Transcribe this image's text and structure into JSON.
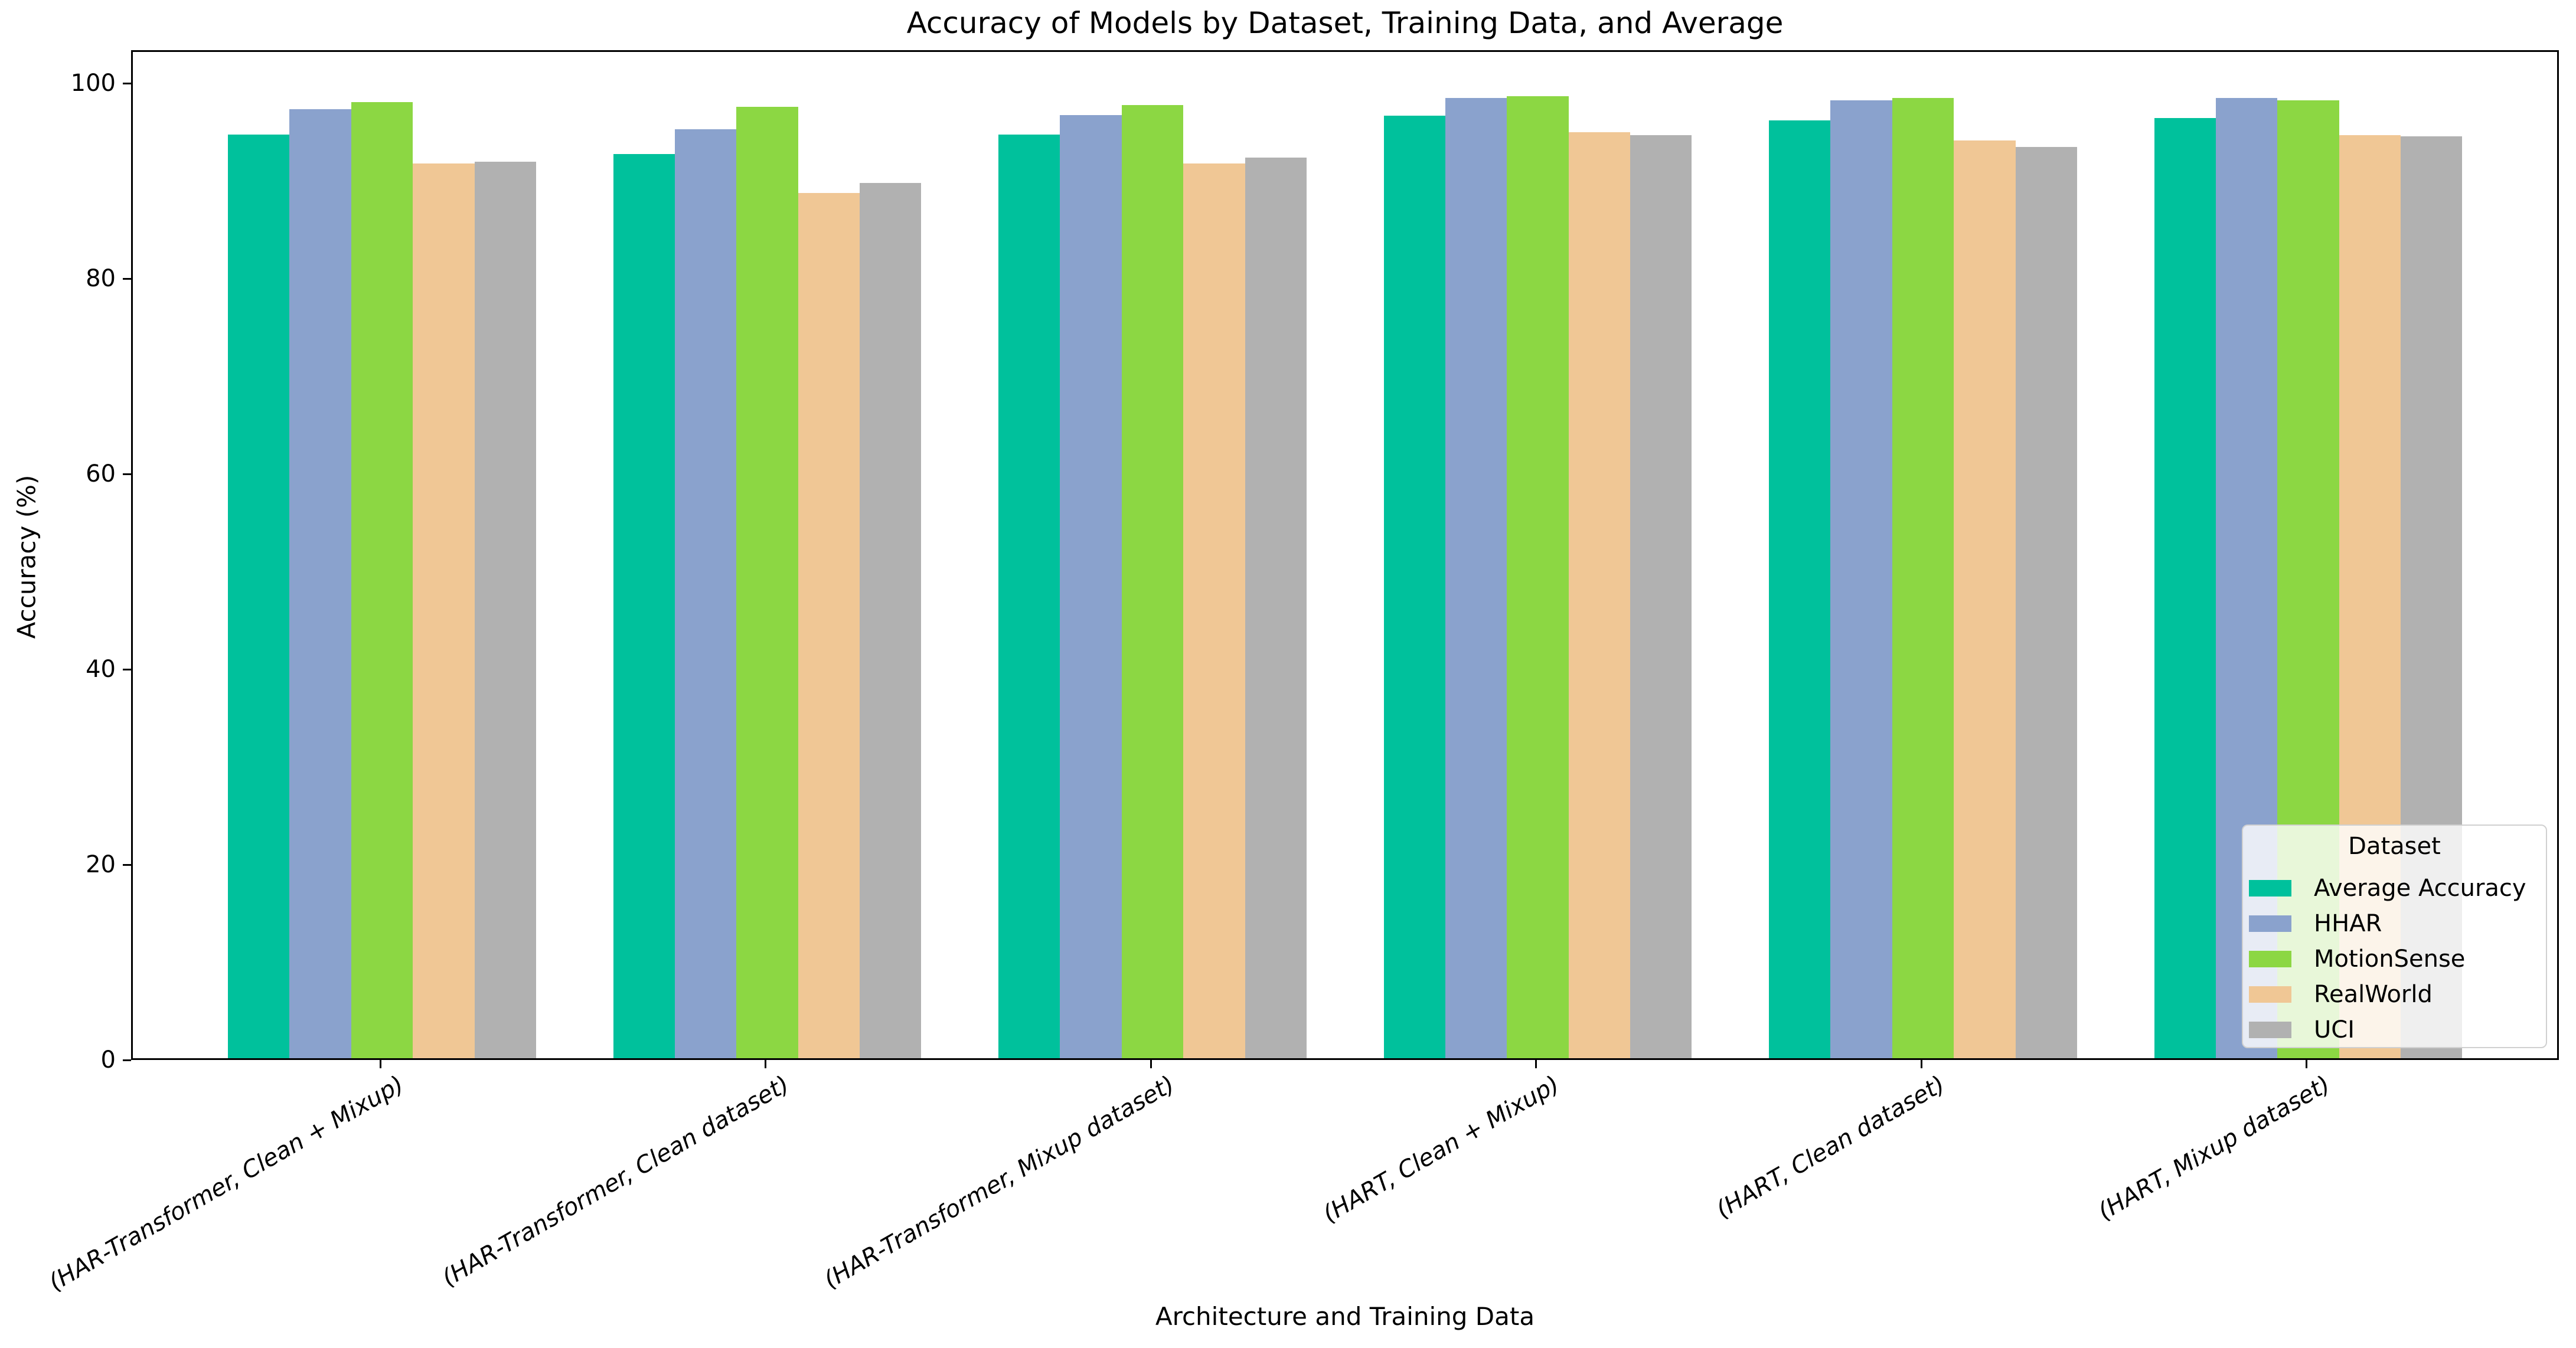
{
  "chart_data": {
    "type": "bar",
    "title": "Accuracy of Models by Dataset, Training Data, and Average",
    "xlabel": "Architecture and Training Data",
    "ylabel": "Accuracy (%)",
    "legend_title": "Dataset",
    "legend_position": "lower right",
    "grid": false,
    "ylim": [
      0,
      103.4
    ],
    "yticks": [
      0,
      20,
      40,
      60,
      80,
      100
    ],
    "categories": [
      "(HAR-Transformer, Clean + Mixup)",
      "(HAR-Transformer, Clean dataset)",
      "(HAR-Transformer, Mixup dataset)",
      "(HART, Clean + Mixup)",
      "(HART, Clean dataset)",
      "(HART, Mixup dataset)"
    ],
    "series": [
      {
        "name": "Average Accuracy",
        "color": "#00c19c",
        "values": [
          94.6,
          92.6,
          94.6,
          96.5,
          96.0,
          96.3
        ]
      },
      {
        "name": "HHAR",
        "color": "#8aa2cd",
        "values": [
          97.2,
          95.1,
          96.6,
          98.3,
          98.1,
          98.3
        ]
      },
      {
        "name": "MotionSense",
        "color": "#8cd743",
        "values": [
          97.9,
          97.4,
          97.6,
          98.5,
          98.3,
          98.1
        ]
      },
      {
        "name": "RealWorld",
        "color": "#f0c795",
        "values": [
          91.6,
          88.6,
          91.6,
          94.8,
          94.0,
          94.5
        ]
      },
      {
        "name": "UCI",
        "color": "#b1b1b1",
        "values": [
          91.8,
          89.6,
          92.2,
          94.5,
          93.3,
          94.4
        ]
      }
    ]
  }
}
